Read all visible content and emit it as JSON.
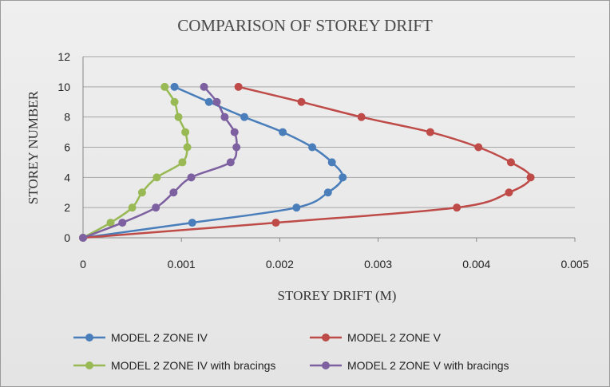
{
  "chart_data": {
    "type": "line",
    "title": "COMPARISON OF STOREY DRIFT",
    "xlabel": "STOREY DRIFT (M)",
    "ylabel": "STOREY NUMBER",
    "xlim": [
      0,
      0.005
    ],
    "ylim": [
      0,
      12
    ],
    "x_ticks": [
      "0",
      "0.001",
      "0.002",
      "0.003",
      "0.004",
      "0.005"
    ],
    "y_ticks": [
      "0",
      "2",
      "4",
      "6",
      "8",
      "10",
      "12"
    ],
    "grid": true,
    "legend_position": "bottom",
    "series": [
      {
        "name": "MODEL 2 ZONE  IV",
        "color": "#4a7ebb",
        "points": [
          [
            0,
            0
          ],
          [
            0.00111,
            1
          ],
          [
            0.00217,
            2
          ],
          [
            0.00249,
            3
          ],
          [
            0.00264,
            4
          ],
          [
            0.00253,
            5
          ],
          [
            0.00233,
            6
          ],
          [
            0.00203,
            7
          ],
          [
            0.00164,
            8
          ],
          [
            0.00128,
            9
          ],
          [
            0.00093,
            10
          ]
        ]
      },
      {
        "name": "MODEL 2 ZONE  V",
        "color": "#be4b48",
        "points": [
          [
            0,
            0
          ],
          [
            0.00196,
            1
          ],
          [
            0.0038,
            2
          ],
          [
            0.00433,
            3
          ],
          [
            0.00455,
            4
          ],
          [
            0.00435,
            5
          ],
          [
            0.00402,
            6
          ],
          [
            0.00353,
            7
          ],
          [
            0.00283,
            8
          ],
          [
            0.00222,
            9
          ],
          [
            0.00158,
            10
          ]
        ]
      },
      {
        "name": "MODEL 2 ZONE  IV with bracings",
        "color": "#98b954",
        "points": [
          [
            0,
            0
          ],
          [
            0.00028,
            1
          ],
          [
            0.0005,
            2
          ],
          [
            0.0006,
            3
          ],
          [
            0.00075,
            4
          ],
          [
            0.00101,
            5
          ],
          [
            0.00106,
            6
          ],
          [
            0.00104,
            7
          ],
          [
            0.00097,
            8
          ],
          [
            0.00093,
            9
          ],
          [
            0.00083,
            10
          ]
        ]
      },
      {
        "name": "MODEL 2 ZONE  V with bracings",
        "color": "#7d60a0",
        "points": [
          [
            0,
            0
          ],
          [
            0.0004,
            1
          ],
          [
            0.00074,
            2
          ],
          [
            0.00092,
            3
          ],
          [
            0.0011,
            4
          ],
          [
            0.0015,
            5
          ],
          [
            0.00156,
            6
          ],
          [
            0.00154,
            7
          ],
          [
            0.00144,
            8
          ],
          [
            0.00136,
            9
          ],
          [
            0.00123,
            10
          ]
        ]
      }
    ]
  }
}
